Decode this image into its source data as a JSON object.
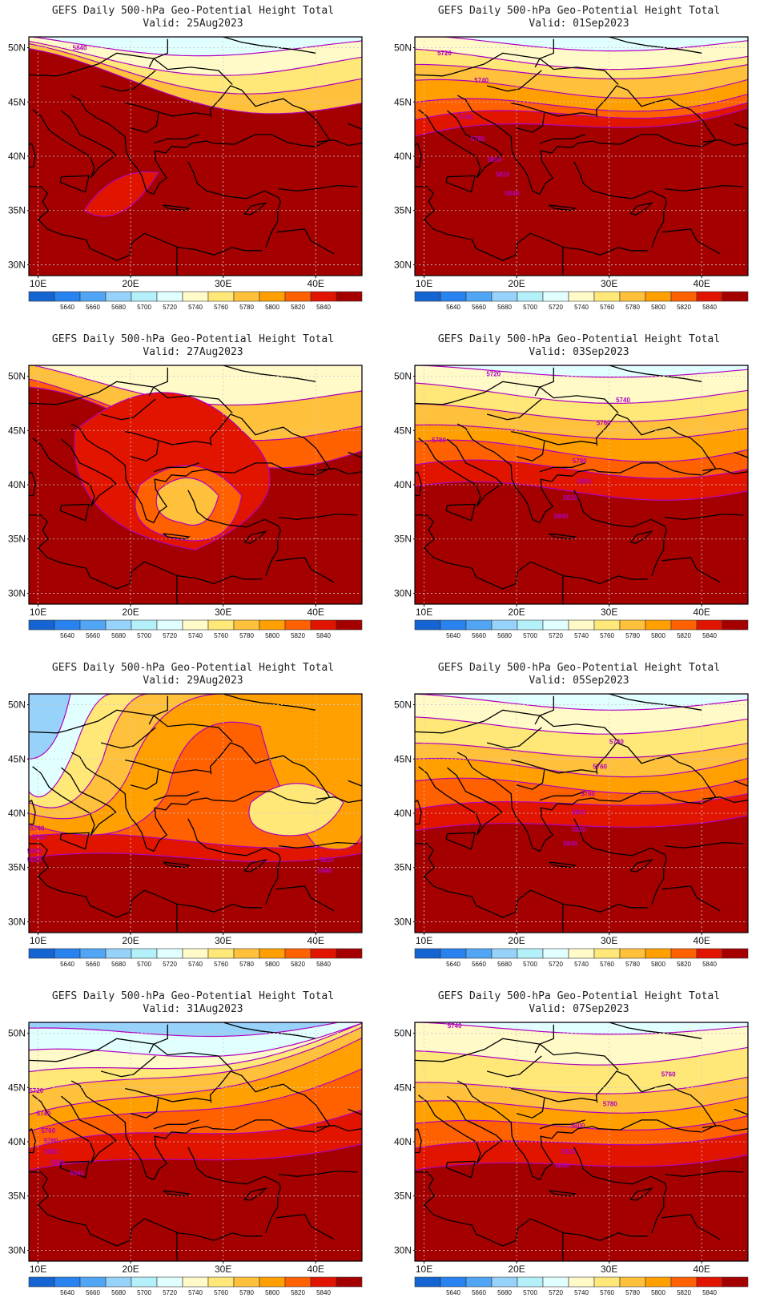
{
  "palette": {
    "levels": [
      "5640",
      "5660",
      "5680",
      "5700",
      "5720",
      "5740",
      "5760",
      "5780",
      "5800",
      "5820",
      "5840"
    ],
    "colors": [
      "#1464d2",
      "#2882f0",
      "#50a5f5",
      "#96d2fa",
      "#b4f0fa",
      "#e1ffff",
      "#fffac8",
      "#ffe878",
      "#ffc03c",
      "#ffa000",
      "#ff6000",
      "#e11400",
      "#a50000"
    ],
    "contour_color": "#b000c0",
    "coast_color": "#000000"
  },
  "axes": {
    "lat_labels": [
      "50N",
      "45N",
      "40N",
      "35N",
      "30N"
    ],
    "lon_labels": [
      "10E",
      "20E",
      "30E",
      "40E"
    ]
  },
  "panels": [
    {
      "title": "GEFS Daily 500-hPa Geo-Potential Height Total",
      "valid": "Valid: 25Aug2023",
      "contour_labels": [
        "5840"
      ]
    },
    {
      "title": "GEFS Daily 500-hPa Geo-Potential Height Total",
      "valid": "Valid: 01Sep2023",
      "contour_labels": [
        "5720",
        "5740",
        "5760",
        "5780",
        "5800",
        "5820",
        "5840"
      ]
    },
    {
      "title": "GEFS Daily 500-hPa Geo-Potential Height Total",
      "valid": "Valid: 27Aug2023",
      "contour_labels": []
    },
    {
      "title": "GEFS Daily 500-hPa Geo-Potential Height Total",
      "valid": "Valid: 03Sep2023",
      "contour_labels": [
        "5720",
        "5740",
        "5760",
        "5780",
        "5780",
        "5800",
        "5820",
        "5840"
      ]
    },
    {
      "title": "GEFS Daily 500-hPa Geo-Potential Height Total",
      "valid": "Valid: 29Aug2023",
      "contour_labels": [
        "5760",
        "5780",
        "5800",
        "5820",
        "5820",
        "5840"
      ]
    },
    {
      "title": "GEFS Daily 500-hPa Geo-Potential Height Total",
      "valid": "Valid: 05Sep2023",
      "contour_labels": [
        "5740",
        "5760",
        "5780",
        "5800",
        "5820",
        "5840"
      ]
    },
    {
      "title": "GEFS Daily 500-hPa Geo-Potential Height Total",
      "valid": "Valid: 31Aug2023",
      "contour_labels": [
        "5720",
        "5740",
        "5760",
        "5780",
        "5800",
        "5820",
        "5840"
      ]
    },
    {
      "title": "GEFS Daily 500-hPa Geo-Potential Height Total",
      "valid": "Valid: 07Sep2023",
      "contour_labels": [
        "5740",
        "5760",
        "5780",
        "5800",
        "5820",
        "5840"
      ]
    }
  ]
}
